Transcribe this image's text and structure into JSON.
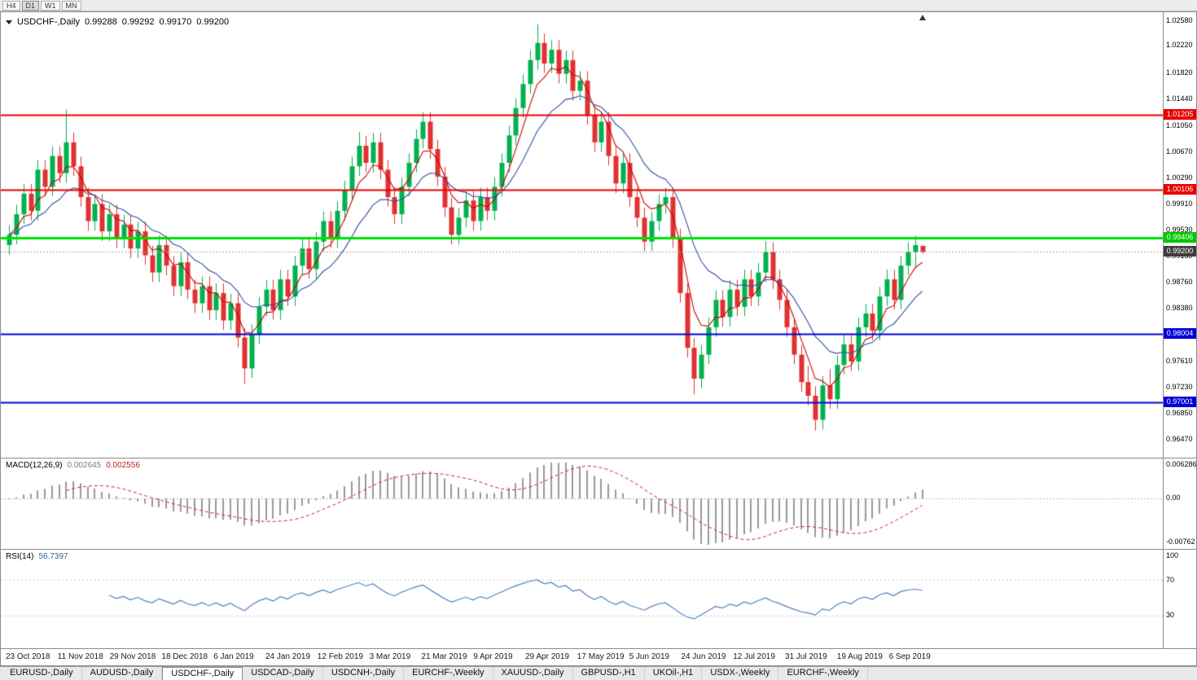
{
  "toolbar": {
    "timeframes": [
      {
        "label": "H4",
        "active": false
      },
      {
        "label": "D1",
        "active": true
      },
      {
        "label": "W1",
        "active": false
      },
      {
        "label": "MN",
        "active": false
      }
    ]
  },
  "chart": {
    "title": {
      "symbol": "USDCHF-,Daily",
      "open": "0.99288",
      "high": "0.99292",
      "low": "0.99170",
      "close": "0.99200"
    }
  },
  "indicators": {
    "macd": {
      "label": "MACD(12,26,9)",
      "value_main": "0.002645",
      "value_signal": "0.002556",
      "axis": [
        "0.006286",
        "0.00",
        "-0.00762"
      ]
    },
    "rsi": {
      "label": "RSI(14)",
      "value": "56.7397",
      "axis": [
        "100",
        "70",
        "30"
      ],
      "levels": [
        70,
        30
      ]
    }
  },
  "levels": [
    {
      "price": "1.01205",
      "value": 1.01205,
      "bg": "#e80000",
      "line": "#e80000",
      "width": 2,
      "dash": false
    },
    {
      "price": "1.00106",
      "value": 1.00106,
      "bg": "#e80000",
      "line": "#e80000",
      "width": 2,
      "dash": false
    },
    {
      "price": "0.99406",
      "value": 0.99406,
      "bg": "#00c800",
      "line": "#00e100",
      "width": 3,
      "dash": false
    },
    {
      "price": "0.99200",
      "value": 0.992,
      "bg": "#3c3c3c",
      "line": "#a8a8a8",
      "width": 1,
      "dash": true
    },
    {
      "price": "0.98004",
      "value": 0.98004,
      "bg": "#0000d8",
      "line": "#0000d8",
      "width": 2,
      "dash": false
    },
    {
      "price": "0.97001",
      "value": 0.97001,
      "bg": "#0000d8",
      "line": "#0000d8",
      "width": 2,
      "dash": false
    }
  ],
  "price_axis": {
    "labels": [
      "1.02580",
      "1.02220",
      "1.01820",
      "1.01440",
      "1.01050",
      "1.00670",
      "1.00290",
      "0.99910",
      "0.99530",
      "0.99150",
      "0.98760",
      "0.98380",
      "0.98000",
      "0.97610",
      "0.97230",
      "0.96850",
      "0.96470"
    ]
  },
  "date_axis": {
    "labels": [
      "23 Oct 2018",
      "11 Nov 2018",
      "29 Nov 2018",
      "18 Dec 2018",
      "6 Jan 2019",
      "24 Jan 2019",
      "12 Feb 2019",
      "3 Mar 2019",
      "21 Mar 2019",
      "9 Apr 2019",
      "29 Apr 2019",
      "17 May 2019",
      "5 Jun 2019",
      "24 Jun 2019",
      "12 Jul 2019",
      "31 Jul 2019",
      "19 Aug 2019",
      "6 Sep 2019"
    ]
  },
  "tabs": {
    "items": [
      {
        "label": "EURUSD-,Daily",
        "active": false
      },
      {
        "label": "AUDUSD-,Daily",
        "active": false
      },
      {
        "label": "USDCHF-,Daily",
        "active": true
      },
      {
        "label": "USDCAD-,Daily",
        "active": false
      },
      {
        "label": "USDCNH-,Daily",
        "active": false
      },
      {
        "label": "EURCHF-,Weekly",
        "active": false
      },
      {
        "label": "XAUUSD-,Daily",
        "active": false
      },
      {
        "label": "GBPUSD-,H1",
        "active": false
      },
      {
        "label": "UKOil-,H1",
        "active": false
      },
      {
        "label": "USDX-,Weekly",
        "active": false
      },
      {
        "label": "EURCHF-,Weekly",
        "active": false
      }
    ]
  },
  "chart_data": {
    "type": "candlestick",
    "symbol": "USDCHF",
    "timeframe": "Daily",
    "price_max": 1.0258,
    "price_min": 0.9647,
    "colors": {
      "bull": "#00b14f",
      "bear": "#e03131",
      "ma_fast": "#cc0000",
      "ma_slow": "#2e4fa3",
      "macd_hist": "#9a9a9a",
      "macd_signal": "#cc2222",
      "rsi": "#4f81bd"
    },
    "candles": [
      [
        0.993,
        0.9959,
        0.9916,
        0.9945
      ],
      [
        0.9945,
        0.9989,
        0.9931,
        0.9975
      ],
      [
        0.9975,
        1.0019,
        0.9961,
        1.0005
      ],
      [
        1.0005,
        1.0019,
        0.9966,
        0.998
      ],
      [
        0.998,
        1.0054,
        0.9966,
        1.004
      ],
      [
        1.004,
        1.0054,
        1.0001,
        1.0015
      ],
      [
        1.0015,
        1.0074,
        1.0001,
        1.006
      ],
      [
        1.006,
        1.0074,
        1.0021,
        1.0035
      ],
      [
        1.0035,
        1.0128,
        1.0021,
        1.008
      ],
      [
        1.008,
        1.0094,
        1.0031,
        1.0045
      ],
      [
        1.0045,
        1.0059,
        0.9986,
        1.0
      ],
      [
        1.0,
        1.0014,
        0.9951,
        0.9965
      ],
      [
        0.9965,
        1.0004,
        0.9951,
        0.999
      ],
      [
        0.999,
        1.0004,
        0.9936,
        0.995
      ],
      [
        0.995,
        0.9989,
        0.9936,
        0.9975
      ],
      [
        0.9975,
        0.9989,
        0.9926,
        0.994
      ],
      [
        0.994,
        0.9974,
        0.9926,
        0.996
      ],
      [
        0.996,
        0.9974,
        0.9911,
        0.9925
      ],
      [
        0.9925,
        0.9964,
        0.9911,
        0.995
      ],
      [
        0.995,
        0.9964,
        0.9901,
        0.9915
      ],
      [
        0.9915,
        0.9929,
        0.9876,
        0.989
      ],
      [
        0.989,
        0.9944,
        0.9876,
        0.993
      ],
      [
        0.993,
        0.9944,
        0.9886,
        0.99
      ],
      [
        0.99,
        0.9914,
        0.9856,
        0.987
      ],
      [
        0.987,
        0.9919,
        0.9856,
        0.9905
      ],
      [
        0.9905,
        0.9919,
        0.9851,
        0.9865
      ],
      [
        0.9865,
        0.9879,
        0.9831,
        0.9845
      ],
      [
        0.9845,
        0.9884,
        0.9831,
        0.987
      ],
      [
        0.987,
        0.9884,
        0.9821,
        0.9835
      ],
      [
        0.9835,
        0.9874,
        0.9821,
        0.986
      ],
      [
        0.986,
        0.9874,
        0.9806,
        0.982
      ],
      [
        0.982,
        0.9859,
        0.9806,
        0.9845
      ],
      [
        0.9845,
        0.9859,
        0.9781,
        0.9795
      ],
      [
        0.9795,
        0.9809,
        0.9727,
        0.975
      ],
      [
        0.975,
        0.9814,
        0.9736,
        0.98
      ],
      [
        0.98,
        0.9854,
        0.9786,
        0.984
      ],
      [
        0.984,
        0.9879,
        0.9826,
        0.9865
      ],
      [
        0.9865,
        0.9879,
        0.9821,
        0.9835
      ],
      [
        0.9835,
        0.9894,
        0.9821,
        0.988
      ],
      [
        0.988,
        0.9894,
        0.9841,
        0.9855
      ],
      [
        0.9855,
        0.9914,
        0.9841,
        0.99
      ],
      [
        0.99,
        0.9939,
        0.9886,
        0.9925
      ],
      [
        0.9925,
        0.9939,
        0.9881,
        0.9895
      ],
      [
        0.9895,
        0.9949,
        0.9881,
        0.9935
      ],
      [
        0.9935,
        0.9979,
        0.9921,
        0.9965
      ],
      [
        0.9965,
        0.9979,
        0.9926,
        0.994
      ],
      [
        0.994,
        0.9994,
        0.9926,
        0.998
      ],
      [
        0.998,
        1.0024,
        0.9966,
        1.001
      ],
      [
        1.001,
        1.0059,
        0.9996,
        1.0045
      ],
      [
        1.0045,
        1.0095,
        1.0031,
        1.0075
      ],
      [
        1.0075,
        1.0089,
        1.0036,
        1.005
      ],
      [
        1.005,
        1.0094,
        1.0036,
        1.008
      ],
      [
        1.008,
        1.0094,
        1.0026,
        1.004
      ],
      [
        1.004,
        1.0054,
        0.9986,
        1.0
      ],
      [
        1.0,
        1.0014,
        0.9961,
        0.9975
      ],
      [
        0.9975,
        1.0029,
        0.9961,
        1.0015
      ],
      [
        1.0015,
        1.0064,
        1.0001,
        1.005
      ],
      [
        1.005,
        1.0099,
        1.0036,
        1.0085
      ],
      [
        1.0085,
        1.0124,
        1.0071,
        1.011
      ],
      [
        1.011,
        1.0124,
        1.0056,
        1.007
      ],
      [
        1.007,
        1.0084,
        1.0016,
        1.003
      ],
      [
        1.003,
        1.0044,
        0.9971,
        0.9985
      ],
      [
        0.9985,
        0.9999,
        0.9931,
        0.9945
      ],
      [
        0.9945,
        0.9984,
        0.9931,
        0.997
      ],
      [
        0.997,
        1.0009,
        0.9956,
        0.9995
      ],
      [
        0.9995,
        1.0009,
        0.9951,
        0.9965
      ],
      [
        0.9965,
        1.0014,
        0.9951,
        1.0
      ],
      [
        1.0,
        1.0014,
        0.9966,
        0.998
      ],
      [
        0.998,
        1.0029,
        0.9966,
        1.0015
      ],
      [
        1.0015,
        1.0064,
        1.0001,
        1.005
      ],
      [
        1.005,
        1.0104,
        1.0036,
        1.009
      ],
      [
        1.009,
        1.0144,
        1.0076,
        1.013
      ],
      [
        1.013,
        1.0179,
        1.0116,
        1.0165
      ],
      [
        1.0165,
        1.0214,
        1.0151,
        1.02
      ],
      [
        1.02,
        1.0252,
        1.0186,
        1.0225
      ],
      [
        1.0225,
        1.0239,
        1.0181,
        1.0195
      ],
      [
        1.0195,
        1.0229,
        1.0181,
        1.0215
      ],
      [
        1.0215,
        1.0229,
        1.0166,
        1.018
      ],
      [
        1.018,
        1.0214,
        1.0166,
        1.02
      ],
      [
        1.02,
        1.0214,
        1.0141,
        1.0155
      ],
      [
        1.0155,
        1.0184,
        1.0141,
        1.017
      ],
      [
        1.017,
        1.0184,
        1.0106,
        1.012
      ],
      [
        1.012,
        1.0134,
        1.0066,
        1.008
      ],
      [
        1.008,
        1.0124,
        1.0066,
        1.011
      ],
      [
        1.011,
        1.0124,
        1.0046,
        1.006
      ],
      [
        1.006,
        1.0074,
        1.0006,
        1.002
      ],
      [
        1.002,
        1.0064,
        1.0006,
        1.005
      ],
      [
        1.005,
        1.0064,
        0.9986,
        1.0
      ],
      [
        1.0,
        1.0014,
        0.9956,
        0.997
      ],
      [
        0.997,
        0.9984,
        0.9921,
        0.9935
      ],
      [
        0.9935,
        0.9979,
        0.9921,
        0.9965
      ],
      [
        0.9965,
        1.0004,
        0.9951,
        0.999
      ],
      [
        0.999,
        1.0014,
        0.9976,
        1.0
      ],
      [
        1.0,
        1.0014,
        0.9926,
        0.994
      ],
      [
        0.994,
        0.9954,
        0.9846,
        0.986
      ],
      [
        0.986,
        0.9874,
        0.9766,
        0.978
      ],
      [
        0.978,
        0.9794,
        0.9712,
        0.9735
      ],
      [
        0.9735,
        0.9784,
        0.9721,
        0.977
      ],
      [
        0.977,
        0.9824,
        0.9756,
        0.981
      ],
      [
        0.981,
        0.9864,
        0.9796,
        0.985
      ],
      [
        0.985,
        0.9864,
        0.9811,
        0.9825
      ],
      [
        0.9825,
        0.9879,
        0.9811,
        0.9865
      ],
      [
        0.9865,
        0.9879,
        0.9826,
        0.984
      ],
      [
        0.984,
        0.9894,
        0.9826,
        0.988
      ],
      [
        0.988,
        0.9894,
        0.9841,
        0.9855
      ],
      [
        0.9855,
        0.9904,
        0.9841,
        0.989
      ],
      [
        0.989,
        0.9936,
        0.9876,
        0.992
      ],
      [
        0.992,
        0.9934,
        0.9866,
        0.988
      ],
      [
        0.988,
        0.9894,
        0.9836,
        0.985
      ],
      [
        0.985,
        0.9864,
        0.9796,
        0.981
      ],
      [
        0.981,
        0.9824,
        0.9756,
        0.977
      ],
      [
        0.977,
        0.9784,
        0.9716,
        0.973
      ],
      [
        0.973,
        0.9754,
        0.9696,
        0.971
      ],
      [
        0.971,
        0.9724,
        0.9659,
        0.9675
      ],
      [
        0.9675,
        0.9739,
        0.9661,
        0.9725
      ],
      [
        0.9725,
        0.9749,
        0.9691,
        0.9705
      ],
      [
        0.9705,
        0.9769,
        0.9691,
        0.9755
      ],
      [
        0.9755,
        0.9799,
        0.9741,
        0.9785
      ],
      [
        0.9785,
        0.9799,
        0.9746,
        0.976
      ],
      [
        0.976,
        0.9824,
        0.9746,
        0.981
      ],
      [
        0.981,
        0.9844,
        0.9796,
        0.983
      ],
      [
        0.983,
        0.9844,
        0.9791,
        0.9805
      ],
      [
        0.9805,
        0.9869,
        0.9791,
        0.9855
      ],
      [
        0.9855,
        0.9894,
        0.9841,
        0.988
      ],
      [
        0.988,
        0.9894,
        0.9836,
        0.985
      ],
      [
        0.985,
        0.9914,
        0.9836,
        0.99
      ],
      [
        0.99,
        0.9934,
        0.9886,
        0.992
      ],
      [
        0.992,
        0.9944,
        0.9896,
        0.993
      ],
      [
        0.99288,
        0.99292,
        0.9917,
        0.992
      ]
    ]
  }
}
